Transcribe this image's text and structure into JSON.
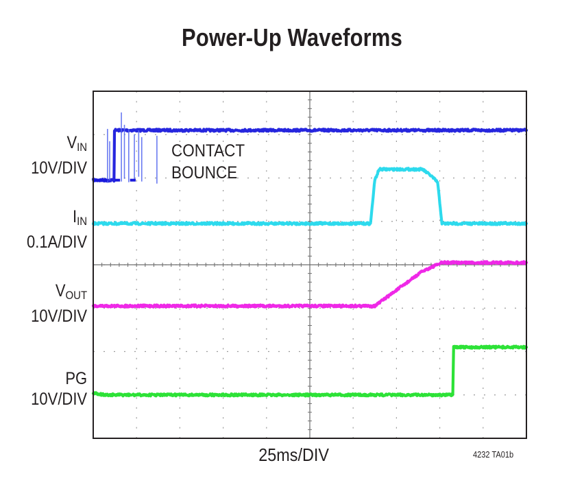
{
  "title": "Power-Up Waveforms",
  "chart_data": {
    "type": "line",
    "title": "Power-Up Waveforms",
    "xlabel": "25ms/DIV",
    "figure_id": "4232 TA01b",
    "grid": true,
    "divisions": {
      "x": 10,
      "y": 8
    },
    "xlim": [
      0,
      10
    ],
    "ylim": [
      0,
      8
    ],
    "annotation": {
      "line1": "CONTACT",
      "line2": "BOUNCE"
    },
    "series": [
      {
        "channel": "V_IN",
        "name_main": "V",
        "name_sub": "IN",
        "scale": "10V/DIV",
        "color": "#1a1adc",
        "glitch_color": "#5a6cf0",
        "x": [
          0,
          0.48,
          0.49,
          10
        ],
        "y": [
          5.95,
          5.95,
          7.1,
          7.1
        ]
      },
      {
        "channel": "I_IN",
        "name_main": "I",
        "name_sub": "IN",
        "scale": "0.1A/DIV",
        "color": "#22d8ec",
        "x": [
          0,
          6.4,
          6.5,
          6.6,
          7.6,
          7.8,
          7.95,
          8.05,
          10
        ],
        "y": [
          4.95,
          4.95,
          5.95,
          6.2,
          6.2,
          6.05,
          5.9,
          4.95,
          4.95
        ]
      },
      {
        "channel": "V_OUT",
        "name_main": "V",
        "name_sub": "OUT",
        "scale": "10V/DIV",
        "color": "#ee1ce6",
        "x": [
          0,
          6.5,
          7.6,
          8.05,
          10
        ],
        "y": [
          3.05,
          3.05,
          3.85,
          4.05,
          4.05
        ]
      },
      {
        "channel": "PG",
        "name_main": "PG",
        "name_sub": "",
        "scale": "10V/DIV",
        "color": "#22e02c",
        "x": [
          0,
          0.25,
          8.3,
          8.32,
          10
        ],
        "y": [
          1.05,
          1.0,
          1.0,
          2.1,
          2.1
        ]
      }
    ]
  }
}
